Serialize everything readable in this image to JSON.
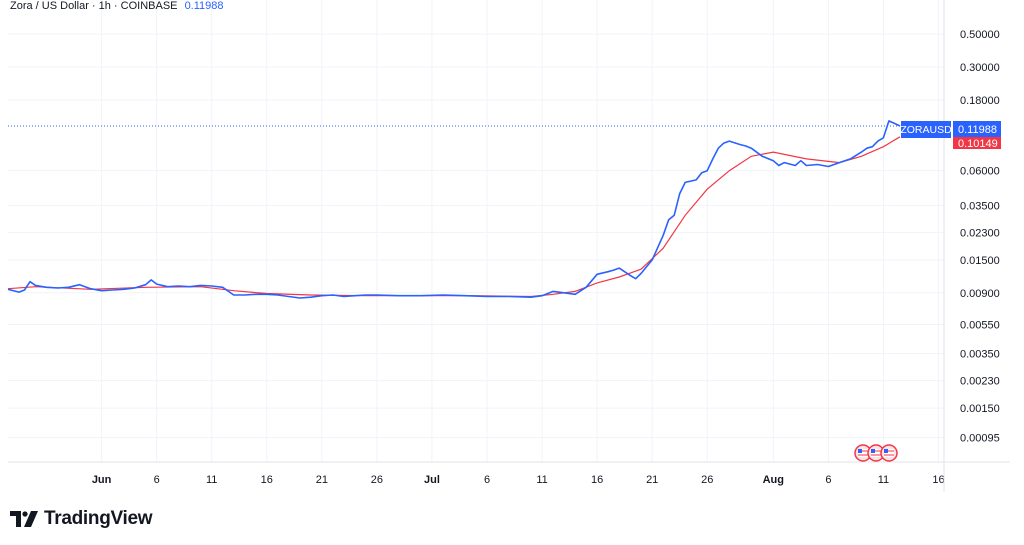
{
  "header": {
    "symbol_line": "Zora / US Dollar · 1h · COINBASE",
    "last_price": "0.11988"
  },
  "price_badge": {
    "ticker": "ZORAUSD",
    "value": "0.11988"
  },
  "ma_badge": {
    "value": "0.10149"
  },
  "footer": {
    "brand": "TradingView"
  },
  "icons": {
    "flag_icons": [
      "us-flag-icon",
      "us-flag-icon",
      "us-flag-icon"
    ]
  },
  "colors": {
    "price_line": "#2962ff",
    "ma_line": "#f23645",
    "badge_blue": "#2962ff",
    "badge_red": "#f23645",
    "grid": "#f0f3fa"
  },
  "chart_data": {
    "type": "line",
    "scale": "log",
    "grid": true,
    "legend": "top-left",
    "x_tick_labels": [
      "Jun",
      "6",
      "11",
      "16",
      "21",
      "26",
      "Jul",
      "6",
      "11",
      "16",
      "21",
      "26",
      "Aug",
      "6",
      "11",
      "16"
    ],
    "y_tick_labels": [
      "0.50000",
      "0.30000",
      "0.18000",
      "0.06000",
      "0.03500",
      "0.02300",
      "0.01500",
      "0.00900",
      "0.00550",
      "0.00350",
      "0.00230",
      "0.00150",
      "0.00095"
    ],
    "y_ticks": [
      0.5,
      0.3,
      0.18,
      0.06,
      0.035,
      0.023,
      0.015,
      0.009,
      0.0055,
      0.0035,
      0.0023,
      0.0015,
      0.00095
    ],
    "ylim": [
      0.00065,
      0.85
    ],
    "x_range_days": [
      -7.5,
      77.5
    ],
    "x_tick_days": [
      1,
      6,
      11,
      16,
      21,
      26,
      31,
      36,
      41,
      46,
      51,
      56,
      62,
      67,
      72,
      77
    ],
    "series": [
      {
        "name": "ZORAUSD",
        "color": "#2962ff",
        "x": [
          -7.5,
          -6.5,
          -6,
          -5.5,
          -5,
          -4,
          -3,
          -2,
          -1,
          0,
          1,
          2,
          3,
          4,
          5,
          5.5,
          6,
          7,
          8,
          9,
          10,
          11,
          12,
          13,
          14,
          15,
          16,
          17,
          18,
          19,
          20,
          21,
          22,
          23,
          24,
          25,
          26,
          28,
          30,
          32,
          34,
          36,
          38,
          40,
          41,
          42,
          43,
          44,
          45,
          46,
          47,
          47.5,
          48,
          49,
          49.5,
          50,
          51,
          52,
          52.5,
          53,
          53.5,
          54,
          55,
          55.5,
          56,
          56.5,
          57,
          57.5,
          58,
          59,
          59.5,
          60,
          61,
          62,
          62.5,
          63,
          64,
          64.5,
          65,
          66,
          67,
          68,
          69,
          70,
          70.5,
          71,
          71.5,
          72,
          72.5,
          73,
          73.5
        ],
        "y": [
          0.0095,
          0.0091,
          0.0094,
          0.0107,
          0.0101,
          0.0098,
          0.0097,
          0.0098,
          0.0102,
          0.0096,
          0.0093,
          0.0094,
          0.0095,
          0.0097,
          0.0102,
          0.011,
          0.0103,
          0.0099,
          0.01,
          0.0099,
          0.0101,
          0.01,
          0.0098,
          0.0087,
          0.0087,
          0.0088,
          0.0088,
          0.0087,
          0.0085,
          0.0083,
          0.0084,
          0.0086,
          0.0087,
          0.0085,
          0.0086,
          0.0087,
          0.0087,
          0.0086,
          0.0086,
          0.0087,
          0.0086,
          0.0085,
          0.0085,
          0.0084,
          0.0086,
          0.0092,
          0.009,
          0.0088,
          0.0098,
          0.012,
          0.0125,
          0.0128,
          0.0132,
          0.0118,
          0.0112,
          0.0122,
          0.015,
          0.022,
          0.028,
          0.03,
          0.042,
          0.05,
          0.052,
          0.058,
          0.06,
          0.072,
          0.085,
          0.092,
          0.095,
          0.09,
          0.088,
          0.085,
          0.075,
          0.07,
          0.065,
          0.068,
          0.065,
          0.07,
          0.065,
          0.066,
          0.064,
          0.068,
          0.072,
          0.08,
          0.085,
          0.087,
          0.095,
          0.1,
          0.13,
          0.125,
          0.12
        ]
      },
      {
        "name": "MA",
        "color": "#f23645",
        "x": [
          -7.5,
          -5,
          0,
          5,
          10,
          13,
          16,
          20,
          25,
          30,
          35,
          40,
          42,
          44,
          46,
          48,
          50,
          52,
          54,
          56,
          58,
          60,
          62,
          65,
          68,
          70,
          72,
          73.5
        ],
        "y": [
          0.0096,
          0.0099,
          0.0095,
          0.0098,
          0.0099,
          0.0093,
          0.0089,
          0.0087,
          0.0086,
          0.0086,
          0.0086,
          0.0085,
          0.0088,
          0.0092,
          0.0105,
          0.0115,
          0.013,
          0.018,
          0.03,
          0.045,
          0.06,
          0.075,
          0.08,
          0.072,
          0.068,
          0.075,
          0.087,
          0.1015
        ]
      }
    ]
  }
}
